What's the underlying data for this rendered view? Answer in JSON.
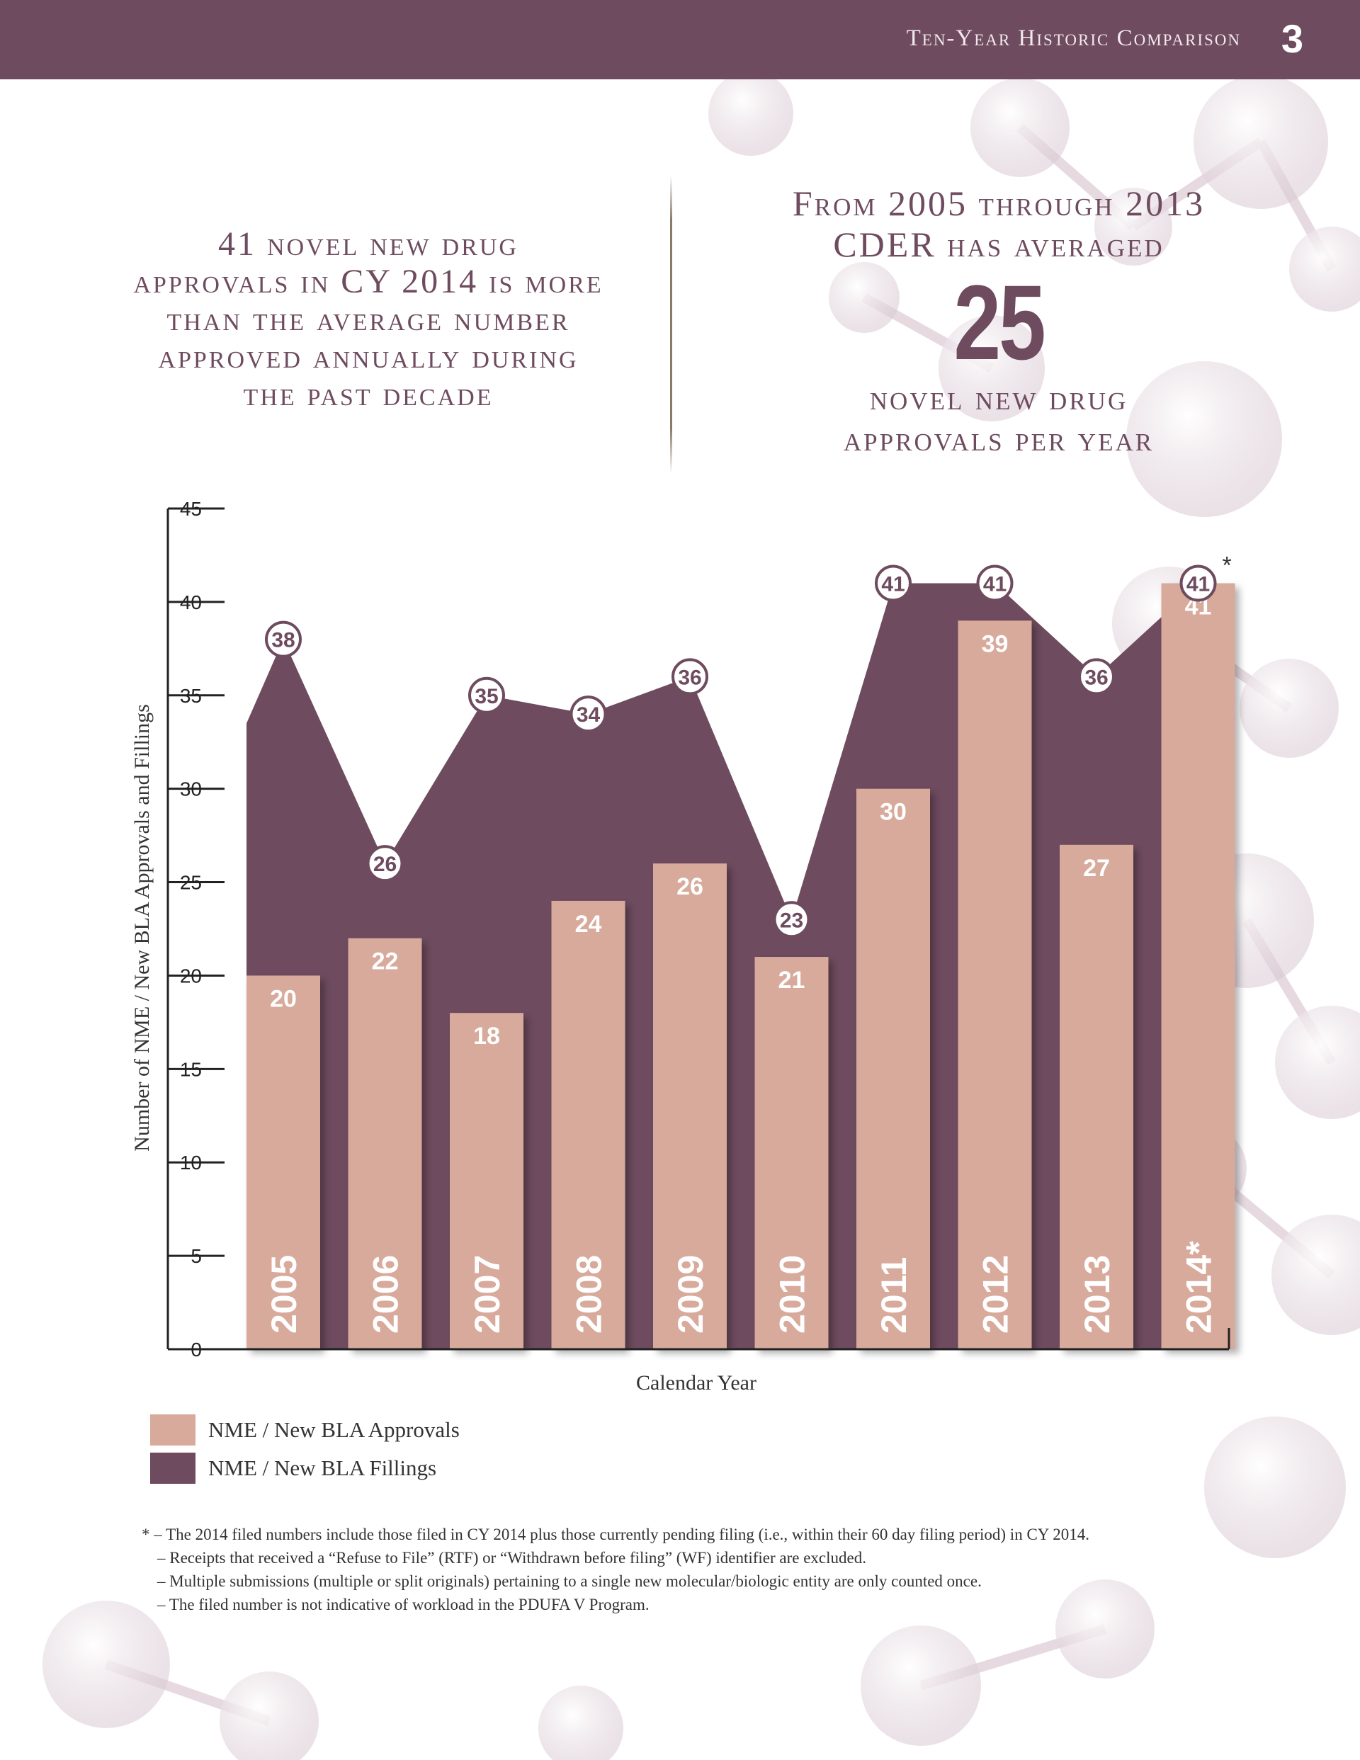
{
  "header": {
    "title": "Ten-Year Historic Comparison",
    "page_number": "3"
  },
  "callouts": {
    "left_lines": [
      "41 novel new drug",
      "approvals in CY 2014 is more",
      "than the average number",
      "approved annually during",
      "the past decade"
    ],
    "right_top": [
      "From 2005 through 2013",
      "CDER has averaged"
    ],
    "right_number": "25",
    "right_bottom": [
      "novel new drug",
      "approvals per year"
    ]
  },
  "chart_data": {
    "type": "bar",
    "xlabel": "Calendar Year",
    "ylabel": "Number of  NME / New BLA Approvals and Fillings",
    "ylim": [
      0,
      45
    ],
    "yticks": [
      0,
      5,
      10,
      15,
      20,
      25,
      30,
      35,
      40,
      45
    ],
    "categories": [
      "2005",
      "2006",
      "2007",
      "2008",
      "2009",
      "2010",
      "2011",
      "2012",
      "2013",
      "2014*"
    ],
    "series": [
      {
        "name": "NME / New BLA Approvals",
        "type": "bar",
        "color": "#d8aa9b",
        "values": [
          20,
          22,
          18,
          24,
          26,
          21,
          30,
          39,
          27,
          41
        ]
      },
      {
        "name": "NME / New BLA Fillings",
        "type": "area",
        "color": "#6e4b5e",
        "values": [
          38,
          26,
          35,
          34,
          36,
          23,
          41,
          41,
          36,
          41
        ]
      }
    ],
    "annotations": [
      {
        "category": "2014*",
        "series": "NME / New BLA Fillings",
        "text": "*"
      }
    ],
    "legend_position": "bottom-left",
    "grid": false
  },
  "legend": [
    {
      "label": "NME / New BLA Approvals",
      "color": "#d8aa9b"
    },
    {
      "label": "NME / New BLA Fillings",
      "color": "#6e4b5e"
    }
  ],
  "footnotes": [
    "* – The 2014 filed numbers include those filed in CY 2014 plus those currently pending filing (i.e., within their 60 day filing period) in CY 2014.",
    "– Receipts that received a “Refuse to File” (RTF) or “Withdrawn before filing” (WF) identifier are excluded.",
    "– Multiple submissions (multiple or split originals) pertaining to a single new molecular/biologic entity are only counted once.",
    "– The filed number is not indicative of workload in the PDUFA V Program."
  ]
}
